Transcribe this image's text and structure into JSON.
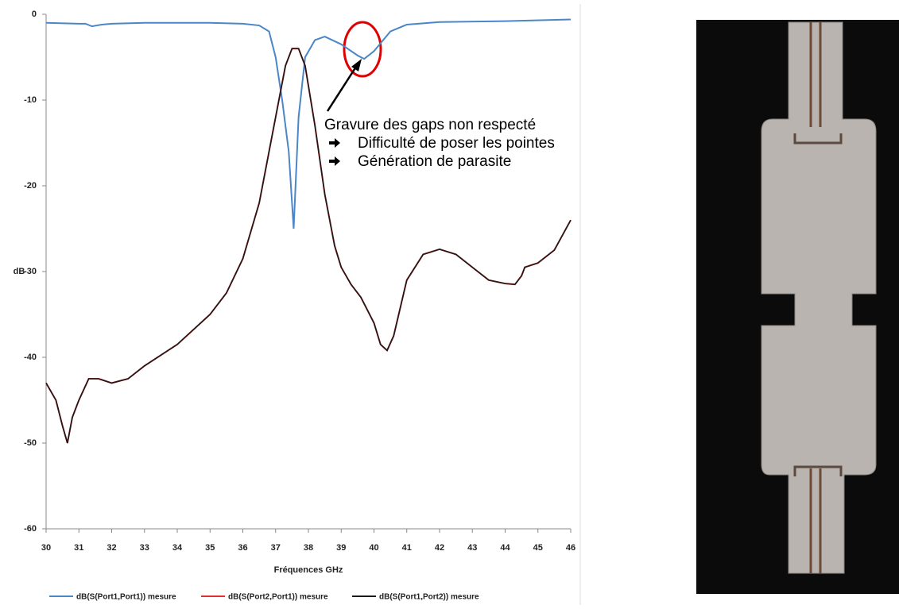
{
  "chart_data": {
    "type": "line",
    "xlabel": "Fréquences GHz",
    "ylabel": "dB",
    "xlim": [
      30,
      46
    ],
    "xticks": [
      30,
      31,
      32,
      33,
      34,
      35,
      36,
      37,
      38,
      39,
      40,
      41,
      42,
      43,
      44,
      45,
      46
    ],
    "ylim": [
      -60,
      0
    ],
    "yticks": [
      0,
      -10,
      -20,
      -30,
      -40,
      -50,
      -60
    ],
    "series": [
      {
        "name": "dB(S(Port1,Port1)) mesure",
        "color": "#4a86c8",
        "x": [
          30,
          31,
          31.2,
          31.4,
          31.7,
          32,
          33,
          34,
          35,
          36,
          36.5,
          36.8,
          37.0,
          37.2,
          37.4,
          37.55,
          37.7,
          37.9,
          38.2,
          38.5,
          39,
          39.5,
          39.7,
          40,
          40.5,
          41,
          42,
          44,
          46
        ],
        "values": [
          -1,
          -1.1,
          -1.1,
          -1.4,
          -1.2,
          -1.1,
          -1.0,
          -1.0,
          -1.0,
          -1.1,
          -1.3,
          -2,
          -5,
          -10,
          -16,
          -25,
          -12,
          -5,
          -3,
          -2.6,
          -3.5,
          -4.8,
          -5.2,
          -4.3,
          -2,
          -1.2,
          -0.9,
          -0.8,
          -0.6
        ]
      },
      {
        "name": "dB(S(Port2,Port1)) mesure",
        "color": "#e03030",
        "x": [
          30,
          30.3,
          30.5,
          30.65,
          30.8,
          31,
          31.3,
          31.6,
          32,
          32.5,
          33,
          34,
          35,
          35.5,
          36,
          36.5,
          37,
          37.3,
          37.5,
          37.7,
          37.9,
          38.2,
          38.5,
          38.8,
          39,
          39.3,
          39.6,
          40,
          40.2,
          40.4,
          40.6,
          41,
          41.5,
          42,
          42.5,
          43,
          43.5,
          44,
          44.3,
          44.5,
          44.6,
          45,
          45.5,
          46
        ],
        "values": [
          -43,
          -45,
          -48,
          -50,
          -47,
          -45,
          -42.5,
          -42.5,
          -43,
          -42.5,
          -41,
          -38.5,
          -35,
          -32.5,
          -28.5,
          -22,
          -12,
          -6,
          -4,
          -4,
          -6,
          -13,
          -21,
          -27,
          -29.5,
          -31.5,
          -33,
          -36,
          -38.5,
          -39.2,
          -37.5,
          -31,
          -28,
          -27.4,
          -28,
          -29.5,
          -31,
          -31.4,
          -31.5,
          -30.5,
          -29.5,
          -29,
          -27.5,
          -24
        ]
      },
      {
        "name": "dB(S(Port1,Port2)) mesure",
        "color": "#1a1a1a",
        "x": [
          30,
          30.3,
          30.5,
          30.65,
          30.8,
          31,
          31.3,
          31.6,
          32,
          32.5,
          33,
          34,
          35,
          35.5,
          36,
          36.5,
          37,
          37.3,
          37.5,
          37.7,
          37.9,
          38.2,
          38.5,
          38.8,
          39,
          39.3,
          39.6,
          40,
          40.2,
          40.4,
          40.6,
          41,
          41.5,
          42,
          42.5,
          43,
          43.5,
          44,
          44.3,
          44.5,
          44.6,
          45,
          45.5,
          46
        ],
        "values": [
          -43,
          -45,
          -48,
          -50,
          -47,
          -45,
          -42.5,
          -42.5,
          -43,
          -42.5,
          -41,
          -38.5,
          -35,
          -32.5,
          -28.5,
          -22,
          -12,
          -6,
          -4,
          -4,
          -6,
          -13,
          -21,
          -27,
          -29.5,
          -31.5,
          -33,
          -36,
          -38.5,
          -39.2,
          -37.5,
          -31,
          -28,
          -27.4,
          -28,
          -29.5,
          -31,
          -31.4,
          -31.5,
          -30.5,
          -29.5,
          -29,
          -27.5,
          -24
        ]
      }
    ],
    "annotation": {
      "title": "Gravure des gaps non respecté",
      "bullets": [
        "Difficulté de poser les pointes",
        "Génération de parasite"
      ]
    }
  }
}
